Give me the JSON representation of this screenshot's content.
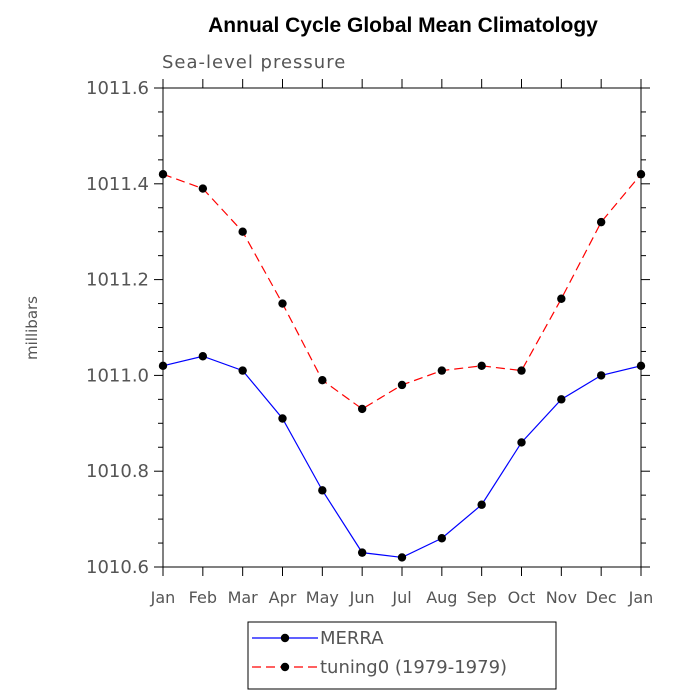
{
  "chart_data": {
    "type": "line",
    "title": "Annual Cycle Global Mean Climatology",
    "subtitle": "Sea-level pressure",
    "xlabel": "",
    "ylabel": "millibars",
    "ylim": [
      1010.6,
      1011.6
    ],
    "yticks": [
      "1010.6",
      "1010.8",
      "1011.0",
      "1011.2",
      "1011.4",
      "1011.6"
    ],
    "categories": [
      "Jan",
      "Feb",
      "Mar",
      "Apr",
      "May",
      "Jun",
      "Jul",
      "Aug",
      "Sep",
      "Oct",
      "Nov",
      "Dec",
      "Jan"
    ],
    "grid": false,
    "legend_position": "bottom",
    "series": [
      {
        "name": "MERRA",
        "color": "#0000ff",
        "dash": "solid",
        "marker": "filled-circle",
        "values": [
          1011.02,
          1011.04,
          1011.01,
          1010.91,
          1010.76,
          1010.63,
          1010.62,
          1010.66,
          1010.73,
          1010.86,
          1010.95,
          1011.0,
          1011.02
        ]
      },
      {
        "name": "tuning0 (1979-1979)",
        "color": "#ff0000",
        "dash": "dashed",
        "marker": "filled-circle",
        "values": [
          1011.42,
          1011.39,
          1011.3,
          1011.15,
          1010.99,
          1010.93,
          1010.98,
          1011.01,
          1011.02,
          1011.01,
          1011.16,
          1011.32,
          1011.42
        ]
      }
    ]
  }
}
